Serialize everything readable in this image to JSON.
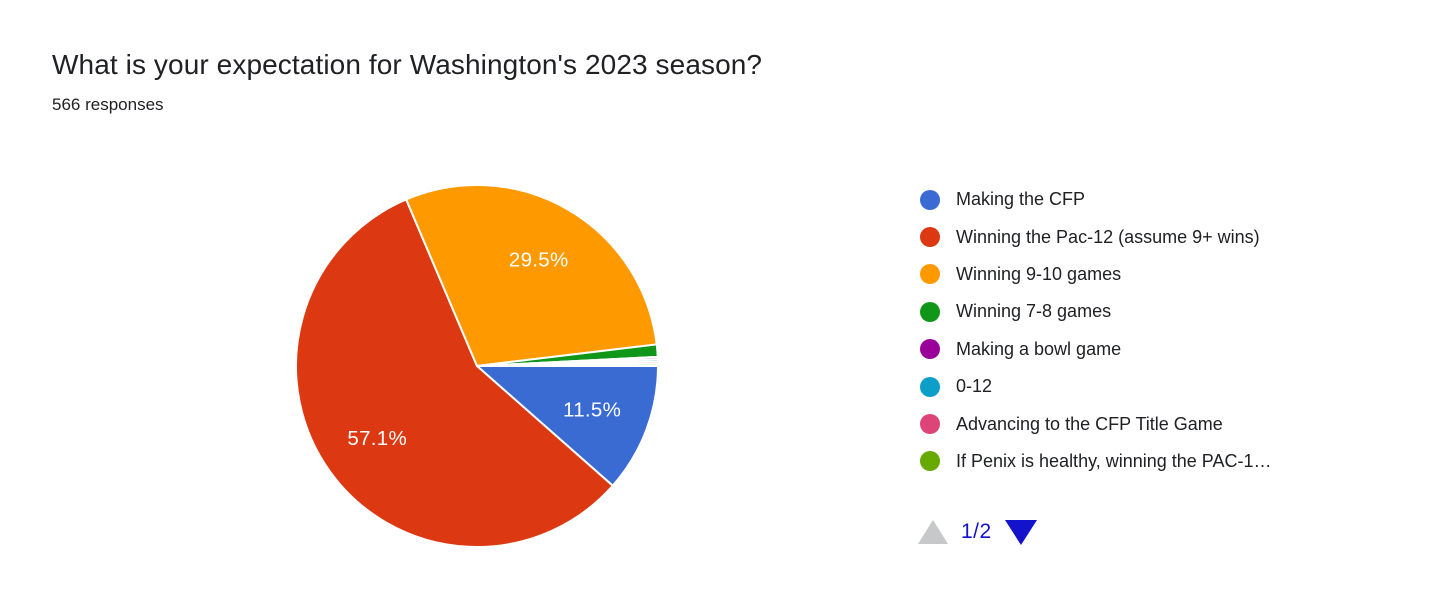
{
  "header": {
    "title": "What is your expectation for Washington's 2023 season?",
    "responses": "566 responses"
  },
  "chart_data": {
    "type": "pie",
    "title": "What is your expectation for Washington's 2023 season?",
    "subtitle": "566 responses",
    "total_responses": 566,
    "start_angle_deg": 0,
    "direction": "clockwise",
    "stroke_color": "#ffffff",
    "label_radius_ratio": 0.68,
    "legend_position": "right",
    "slices": [
      {
        "label": "Making the CFP",
        "value": 11.5,
        "pct_label": "11.5%",
        "color": "#3a6bd2"
      },
      {
        "label": "Winning the Pac-12 (assume 9+ wins)",
        "value": 57.1,
        "pct_label": "57.1%",
        "color": "#dc3912"
      },
      {
        "label": "Winning 9-10 games",
        "value": 29.5,
        "pct_label": "29.5%",
        "color": "#ff9900"
      },
      {
        "label": "Winning 7-8 games",
        "value": 1.1,
        "color": "#109618"
      },
      {
        "label": "Making a bowl game",
        "value": 0.2,
        "color": "#990099"
      },
      {
        "label": "0-12",
        "value": 0.2,
        "color": "#0e9fc8"
      },
      {
        "label": "Advancing to the CFP Title Game",
        "value": 0.2,
        "color": "#dd4477"
      },
      {
        "label": "If Penix is healthy, winning the PAC-1…",
        "value": 0.2,
        "color": "#66aa00"
      }
    ]
  },
  "pagination": {
    "page_label": "1/2",
    "prev_icon": "up-triangle",
    "next_icon": "down-triangle",
    "prev_disabled_color": "#c7c8ca",
    "next_color": "#1213cb"
  }
}
